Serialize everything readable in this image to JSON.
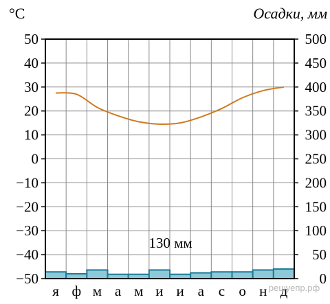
{
  "chart_data": {
    "type": "bar+line",
    "left_axis": {
      "unit_label": "°C",
      "ylim": [
        -50,
        50
      ],
      "ticks": [
        50,
        40,
        30,
        20,
        10,
        0,
        -10,
        -20,
        -30,
        -40,
        -50
      ],
      "tick_labels": [
        "50",
        "40",
        "30",
        "20",
        "10",
        "0",
        "−10",
        "−20",
        "−30",
        "−40",
        "−50"
      ]
    },
    "right_axis": {
      "unit_label": "Осадки, мм",
      "ylim": [
        0,
        500
      ],
      "ticks": [
        500,
        450,
        400,
        350,
        300,
        250,
        200,
        150,
        100,
        50,
        0
      ],
      "tick_labels": [
        "500",
        "450",
        "400",
        "350",
        "300",
        "250",
        "200",
        "150",
        "100",
        "50",
        "0"
      ]
    },
    "categories": [
      "я",
      "ф",
      "м",
      "а",
      "м",
      "и",
      "и",
      "а",
      "с",
      "о",
      "н",
      "д"
    ],
    "temperature": {
      "axis": "left",
      "color": "#d07a1e",
      "values": [
        27.5,
        27,
        21.5,
        18,
        15.5,
        14.5,
        15,
        17.5,
        21,
        25.5,
        28.5,
        30
      ]
    },
    "precipitation": {
      "axis": "right",
      "fill": "#8ec9d9",
      "stroke": "#1b7b99",
      "values": [
        14,
        10,
        18,
        9,
        9,
        18,
        9,
        12,
        14,
        14,
        18,
        20
      ]
    },
    "annotation": "130 мм",
    "grid": true
  },
  "watermark": "решуепр.рф"
}
